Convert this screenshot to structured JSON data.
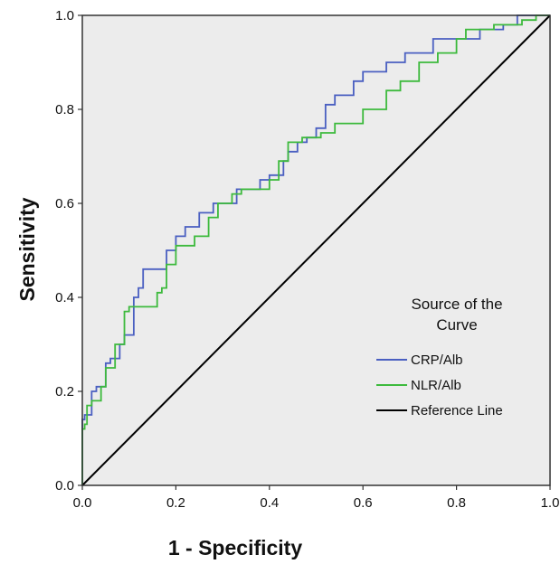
{
  "chart_data": {
    "type": "line",
    "title": "",
    "xlabel": "1 - Specificity",
    "ylabel": "Sensitivity",
    "xlim": [
      0,
      1
    ],
    "ylim": [
      0,
      1
    ],
    "xticks": [
      "0.0",
      "0.2",
      "0.4",
      "0.6",
      "0.8",
      "1.0"
    ],
    "yticks": [
      "0.0",
      "0.2",
      "0.4",
      "0.6",
      "0.8",
      "1.0"
    ],
    "grid": false,
    "plot_background": "#ececec",
    "legend": {
      "title_lines": [
        "Source of the",
        "Curve"
      ],
      "placement": "lower-right",
      "entries": [
        "CRP/Alb",
        "NLR/Alb",
        "Reference Line"
      ]
    },
    "series": [
      {
        "name": "CRP/Alb",
        "color": "#4a5fc1",
        "points": [
          [
            0,
            0
          ],
          [
            0,
            0.12
          ],
          [
            0.005,
            0.14
          ],
          [
            0.02,
            0.15
          ],
          [
            0.03,
            0.2
          ],
          [
            0.05,
            0.21
          ],
          [
            0.06,
            0.26
          ],
          [
            0.08,
            0.27
          ],
          [
            0.09,
            0.3
          ],
          [
            0.11,
            0.32
          ],
          [
            0.12,
            0.4
          ],
          [
            0.13,
            0.42
          ],
          [
            0.14,
            0.46
          ],
          [
            0.18,
            0.46
          ],
          [
            0.2,
            0.5
          ],
          [
            0.22,
            0.53
          ],
          [
            0.25,
            0.55
          ],
          [
            0.28,
            0.58
          ],
          [
            0.33,
            0.6
          ],
          [
            0.38,
            0.63
          ],
          [
            0.4,
            0.65
          ],
          [
            0.43,
            0.66
          ],
          [
            0.44,
            0.69
          ],
          [
            0.46,
            0.71
          ],
          [
            0.48,
            0.73
          ],
          [
            0.5,
            0.74
          ],
          [
            0.52,
            0.76
          ],
          [
            0.54,
            0.81
          ],
          [
            0.58,
            0.83
          ],
          [
            0.6,
            0.86
          ],
          [
            0.65,
            0.88
          ],
          [
            0.69,
            0.9
          ],
          [
            0.75,
            0.92
          ],
          [
            0.78,
            0.95
          ],
          [
            0.85,
            0.95
          ],
          [
            0.9,
            0.97
          ],
          [
            0.93,
            0.98
          ],
          [
            0.96,
            1.0
          ],
          [
            1,
            1
          ]
        ]
      },
      {
        "name": "NLR/Alb",
        "color": "#3dba3d",
        "points": [
          [
            0,
            0
          ],
          [
            0.005,
            0.12
          ],
          [
            0.01,
            0.13
          ],
          [
            0.02,
            0.17
          ],
          [
            0.04,
            0.18
          ],
          [
            0.05,
            0.21
          ],
          [
            0.07,
            0.25
          ],
          [
            0.09,
            0.3
          ],
          [
            0.1,
            0.37
          ],
          [
            0.12,
            0.38
          ],
          [
            0.16,
            0.38
          ],
          [
            0.17,
            0.41
          ],
          [
            0.18,
            0.42
          ],
          [
            0.2,
            0.47
          ],
          [
            0.24,
            0.51
          ],
          [
            0.27,
            0.53
          ],
          [
            0.29,
            0.57
          ],
          [
            0.32,
            0.6
          ],
          [
            0.34,
            0.62
          ],
          [
            0.4,
            0.63
          ],
          [
            0.42,
            0.65
          ],
          [
            0.44,
            0.69
          ],
          [
            0.47,
            0.73
          ],
          [
            0.51,
            0.74
          ],
          [
            0.54,
            0.75
          ],
          [
            0.6,
            0.77
          ],
          [
            0.65,
            0.8
          ],
          [
            0.68,
            0.84
          ],
          [
            0.72,
            0.86
          ],
          [
            0.76,
            0.9
          ],
          [
            0.8,
            0.92
          ],
          [
            0.82,
            0.95
          ],
          [
            0.88,
            0.97
          ],
          [
            0.94,
            0.98
          ],
          [
            0.97,
            0.99
          ],
          [
            1,
            1
          ]
        ]
      },
      {
        "name": "Reference Line",
        "color": "#000000",
        "points": [
          [
            0,
            0
          ],
          [
            1,
            1
          ]
        ]
      }
    ]
  }
}
